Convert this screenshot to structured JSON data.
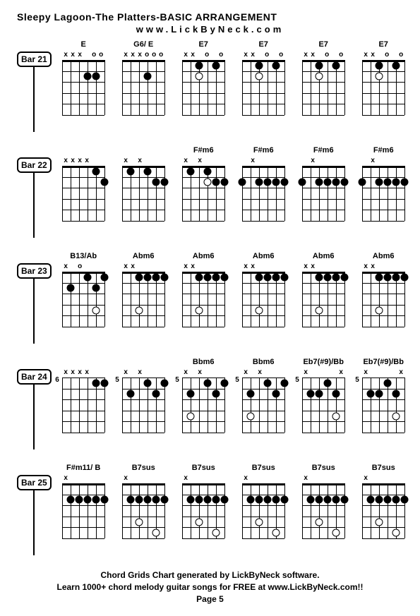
{
  "title": "Sleepy Lagoon-The Platters-BASIC ARRANGEMENT",
  "url": "www.LickByNeck.com",
  "footer_line1": "Chord Grids Chart generated by LickByNeck software.",
  "footer_line2": "Learn 1000+ chord melody guitar songs for FREE at www.LickByNeck.com!!",
  "page": "Page 5",
  "layout": {
    "strings": 6,
    "frets": 5,
    "diagram_w": 60,
    "diagram_h": 78,
    "colors": {
      "bg": "#ffffff",
      "line": "#000000"
    }
  },
  "rows": [
    {
      "bar": "Bar 21",
      "chords": [
        {
          "name": "E",
          "pos": "",
          "nut": [
            "x",
            "x",
            "x",
            "",
            "o",
            "o"
          ],
          "dots": [
            [
              4,
              2
            ],
            [
              5,
              2
            ]
          ],
          "open_dots": []
        },
        {
          "name": "G6/ E",
          "pos": "",
          "nut": [
            "x",
            "x",
            "x",
            "o",
            "o",
            "o"
          ],
          "dots": [
            [
              4,
              2
            ]
          ],
          "open_dots": []
        },
        {
          "name": "E7",
          "pos": "",
          "nut": [
            "x",
            "x",
            "",
            "o",
            "",
            "o"
          ],
          "dots": [
            [
              3,
              1
            ],
            [
              5,
              1
            ]
          ],
          "open_dots": [
            [
              3,
              2
            ]
          ]
        },
        {
          "name": "E7",
          "pos": "",
          "nut": [
            "x",
            "x",
            "",
            "o",
            "",
            "o"
          ],
          "dots": [
            [
              3,
              1
            ],
            [
              5,
              1
            ]
          ],
          "open_dots": [
            [
              3,
              2
            ]
          ]
        },
        {
          "name": "E7",
          "pos": "",
          "nut": [
            "x",
            "x",
            "",
            "o",
            "",
            "o"
          ],
          "dots": [
            [
              3,
              1
            ],
            [
              5,
              1
            ]
          ],
          "open_dots": [
            [
              3,
              2
            ]
          ]
        },
        {
          "name": "E7",
          "pos": "",
          "nut": [
            "x",
            "x",
            "",
            "o",
            "",
            "o"
          ],
          "dots": [
            [
              3,
              1
            ],
            [
              5,
              1
            ]
          ],
          "open_dots": [
            [
              3,
              2
            ]
          ]
        }
      ]
    },
    {
      "bar": "Bar 22",
      "chords": [
        {
          "name": "",
          "pos": "",
          "nut": [
            "x",
            "x",
            "x",
            "x",
            "",
            ""
          ],
          "dots": [
            [
              5,
              1
            ],
            [
              6,
              2
            ]
          ],
          "open_dots": []
        },
        {
          "name": "",
          "pos": "",
          "nut": [
            "x",
            "",
            "x",
            "",
            "",
            ""
          ],
          "dots": [
            [
              2,
              1
            ],
            [
              4,
              1
            ],
            [
              5,
              2
            ],
            [
              6,
              2
            ]
          ],
          "open_dots": []
        },
        {
          "name": "F#m6",
          "pos": "",
          "nut": [
            "x",
            "",
            "x",
            "",
            "",
            ""
          ],
          "dots": [
            [
              2,
              1
            ],
            [
              4,
              1
            ],
            [
              5,
              2
            ],
            [
              6,
              2
            ]
          ],
          "open_dots": [
            [
              4,
              2
            ]
          ]
        },
        {
          "name": "F#m6",
          "pos": "",
          "nut": [
            "",
            "x",
            "",
            "",
            "",
            ""
          ],
          "dots": [
            [
              1,
              2
            ],
            [
              3,
              2
            ],
            [
              4,
              2
            ],
            [
              5,
              2
            ],
            [
              6,
              2
            ]
          ],
          "open_dots": []
        },
        {
          "name": "F#m6",
          "pos": "",
          "nut": [
            "",
            "x",
            "",
            "",
            "",
            ""
          ],
          "dots": [
            [
              1,
              2
            ],
            [
              3,
              2
            ],
            [
              4,
              2
            ],
            [
              5,
              2
            ],
            [
              6,
              2
            ]
          ],
          "open_dots": []
        },
        {
          "name": "F#m6",
          "pos": "",
          "nut": [
            "",
            "x",
            "",
            "",
            "",
            ""
          ],
          "dots": [
            [
              1,
              2
            ],
            [
              3,
              2
            ],
            [
              4,
              2
            ],
            [
              5,
              2
            ],
            [
              6,
              2
            ]
          ],
          "open_dots": []
        }
      ]
    },
    {
      "bar": "Bar 23",
      "chords": [
        {
          "name": "B13/Ab",
          "pos": "",
          "nut": [
            "x",
            "",
            "o",
            "",
            "",
            ""
          ],
          "dots": [
            [
              2,
              2
            ],
            [
              4,
              1
            ],
            [
              5,
              2
            ],
            [
              6,
              1
            ]
          ],
          "open_dots": [
            [
              5,
              4
            ]
          ]
        },
        {
          "name": "Abm6",
          "pos": "",
          "nut": [
            "x",
            "x",
            "",
            "",
            "",
            ""
          ],
          "dots": [
            [
              3,
              1
            ],
            [
              4,
              1
            ],
            [
              5,
              1
            ],
            [
              6,
              1
            ]
          ],
          "open_dots": [
            [
              3,
              4
            ]
          ]
        },
        {
          "name": "Abm6",
          "pos": "",
          "nut": [
            "x",
            "x",
            "",
            "",
            "",
            ""
          ],
          "dots": [
            [
              3,
              1
            ],
            [
              4,
              1
            ],
            [
              5,
              1
            ],
            [
              6,
              1
            ]
          ],
          "open_dots": [
            [
              3,
              4
            ]
          ]
        },
        {
          "name": "Abm6",
          "pos": "",
          "nut": [
            "x",
            "x",
            "",
            "",
            "",
            ""
          ],
          "dots": [
            [
              3,
              1
            ],
            [
              4,
              1
            ],
            [
              5,
              1
            ],
            [
              6,
              1
            ]
          ],
          "open_dots": [
            [
              3,
              4
            ]
          ]
        },
        {
          "name": "Abm6",
          "pos": "",
          "nut": [
            "x",
            "x",
            "",
            "",
            "",
            ""
          ],
          "dots": [
            [
              3,
              1
            ],
            [
              4,
              1
            ],
            [
              5,
              1
            ],
            [
              6,
              1
            ]
          ],
          "open_dots": [
            [
              3,
              4
            ]
          ]
        },
        {
          "name": "Abm6",
          "pos": "",
          "nut": [
            "x",
            "x",
            "",
            "",
            "",
            ""
          ],
          "dots": [
            [
              3,
              1
            ],
            [
              4,
              1
            ],
            [
              5,
              1
            ],
            [
              6,
              1
            ]
          ],
          "open_dots": [
            [
              3,
              4
            ]
          ]
        }
      ]
    },
    {
      "bar": "Bar 24",
      "chords": [
        {
          "name": "",
          "pos": "6",
          "nut": [
            "x",
            "x",
            "x",
            "x",
            "",
            ""
          ],
          "dots": [
            [
              5,
              1
            ],
            [
              6,
              1
            ]
          ],
          "open_dots": []
        },
        {
          "name": "",
          "pos": "5",
          "nut": [
            "x",
            "",
            "x",
            "",
            "",
            ""
          ],
          "dots": [
            [
              2,
              2
            ],
            [
              4,
              1
            ],
            [
              5,
              2
            ],
            [
              6,
              1
            ]
          ],
          "open_dots": []
        },
        {
          "name": "Bbm6",
          "pos": "5",
          "nut": [
            "x",
            "",
            "x",
            "",
            "",
            ""
          ],
          "dots": [
            [
              2,
              2
            ],
            [
              4,
              1
            ],
            [
              5,
              2
            ],
            [
              6,
              1
            ]
          ],
          "open_dots": [
            [
              2,
              4
            ]
          ]
        },
        {
          "name": "Bbm6",
          "pos": "5",
          "nut": [
            "x",
            "",
            "x",
            "",
            "",
            ""
          ],
          "dots": [
            [
              2,
              2
            ],
            [
              4,
              1
            ],
            [
              5,
              2
            ],
            [
              6,
              1
            ]
          ],
          "open_dots": [
            [
              2,
              4
            ]
          ]
        },
        {
          "name": "Eb7(#9)/Bb",
          "pos": "5",
          "nut": [
            "x",
            "",
            "",
            "",
            "",
            "x"
          ],
          "dots": [
            [
              2,
              2
            ],
            [
              3,
              2
            ],
            [
              4,
              1
            ],
            [
              5,
              2
            ]
          ],
          "open_dots": [
            [
              5,
              4
            ]
          ]
        },
        {
          "name": "Eb7(#9)/Bb",
          "pos": "5",
          "nut": [
            "x",
            "",
            "",
            "",
            "",
            "x"
          ],
          "dots": [
            [
              2,
              2
            ],
            [
              3,
              2
            ],
            [
              4,
              1
            ],
            [
              5,
              2
            ]
          ],
          "open_dots": [
            [
              5,
              4
            ]
          ]
        }
      ]
    },
    {
      "bar": "Bar 25",
      "chords": [
        {
          "name": "F#m11/ B",
          "pos": "",
          "nut": [
            "x",
            "",
            "",
            "",
            "",
            ""
          ],
          "dots": [
            [
              2,
              2
            ],
            [
              3,
              2
            ],
            [
              4,
              2
            ],
            [
              5,
              2
            ],
            [
              6,
              2
            ]
          ],
          "open_dots": []
        },
        {
          "name": "B7sus",
          "pos": "",
          "nut": [
            "x",
            "",
            "",
            "",
            "",
            ""
          ],
          "dots": [
            [
              2,
              2
            ],
            [
              3,
              2
            ],
            [
              4,
              2
            ],
            [
              5,
              2
            ],
            [
              6,
              2
            ]
          ],
          "open_dots": [
            [
              3,
              4
            ],
            [
              5,
              5
            ]
          ]
        },
        {
          "name": "B7sus",
          "pos": "",
          "nut": [
            "x",
            "",
            "",
            "",
            "",
            ""
          ],
          "dots": [
            [
              2,
              2
            ],
            [
              3,
              2
            ],
            [
              4,
              2
            ],
            [
              5,
              2
            ],
            [
              6,
              2
            ]
          ],
          "open_dots": [
            [
              3,
              4
            ],
            [
              5,
              5
            ]
          ]
        },
        {
          "name": "B7sus",
          "pos": "",
          "nut": [
            "x",
            "",
            "",
            "",
            "",
            ""
          ],
          "dots": [
            [
              2,
              2
            ],
            [
              3,
              2
            ],
            [
              4,
              2
            ],
            [
              5,
              2
            ],
            [
              6,
              2
            ]
          ],
          "open_dots": [
            [
              3,
              4
            ],
            [
              5,
              5
            ]
          ]
        },
        {
          "name": "B7sus",
          "pos": "",
          "nut": [
            "x",
            "",
            "",
            "",
            "",
            ""
          ],
          "dots": [
            [
              2,
              2
            ],
            [
              3,
              2
            ],
            [
              4,
              2
            ],
            [
              5,
              2
            ],
            [
              6,
              2
            ]
          ],
          "open_dots": [
            [
              3,
              4
            ],
            [
              5,
              5
            ]
          ]
        },
        {
          "name": "B7sus",
          "pos": "",
          "nut": [
            "x",
            "",
            "",
            "",
            "",
            ""
          ],
          "dots": [
            [
              2,
              2
            ],
            [
              3,
              2
            ],
            [
              4,
              2
            ],
            [
              5,
              2
            ],
            [
              6,
              2
            ]
          ],
          "open_dots": [
            [
              3,
              4
            ],
            [
              5,
              5
            ]
          ]
        }
      ]
    }
  ]
}
